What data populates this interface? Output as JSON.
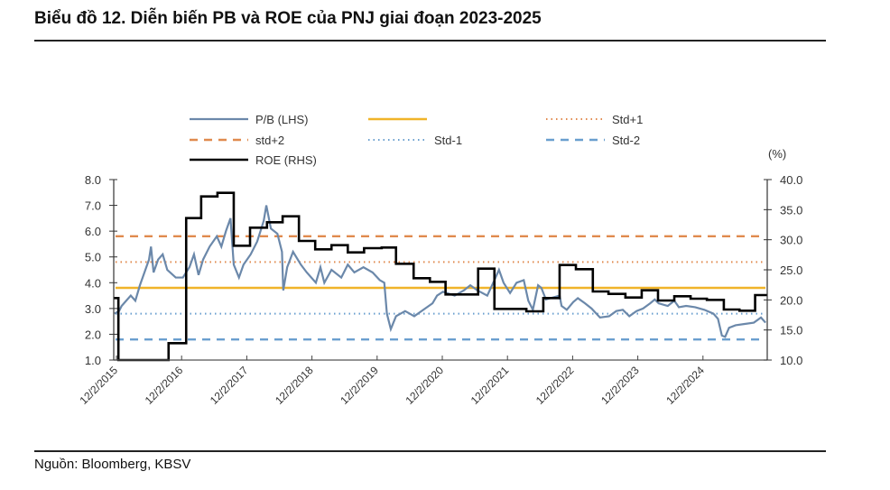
{
  "page": {
    "title": "Biểu đồ 12. Diễn biến PB và ROE của PNJ giai đoạn 2023-2025",
    "source": "Nguồn: Bloomberg, KBSV"
  },
  "chart_data": {
    "type": "line",
    "title": "Biểu đồ 12. Diễn biến PB và ROE của PNJ giai đoạn 2023-2025",
    "xlabel": "",
    "ylabel_left": "",
    "ylabel_right": "(%)",
    "x_unit": "years since 12/2/2015",
    "xlim": [
      -0.04,
      9.99
    ],
    "x_ticks": [
      {
        "t": 0,
        "label": "12/2/2015"
      },
      {
        "t": 1,
        "label": "12/2/2016"
      },
      {
        "t": 2,
        "label": "12/2/2017"
      },
      {
        "t": 3,
        "label": "12/2/2018"
      },
      {
        "t": 4,
        "label": "12/2/2019"
      },
      {
        "t": 5,
        "label": "12/2/2020"
      },
      {
        "t": 6,
        "label": "12/2/2021"
      },
      {
        "t": 7,
        "label": "12/2/2022"
      },
      {
        "t": 8,
        "label": "12/2/2023"
      },
      {
        "t": 9,
        "label": "12/2/2024"
      }
    ],
    "y_left": {
      "min": 1.0,
      "max": 8.0,
      "ticks": [
        "1.0",
        "2.0",
        "3.0",
        "4.0",
        "5.0",
        "6.0",
        "7.0",
        "8.0"
      ]
    },
    "y_right": {
      "min": 10.0,
      "max": 40.0,
      "ticks": [
        "10.0",
        "15.0",
        "20.0",
        "25.0",
        "30.0",
        "35.0",
        "40.0"
      ]
    },
    "grid": false,
    "legend": {
      "position": "top",
      "entries": [
        {
          "key": "pb",
          "label": "P/B (LHS)"
        },
        {
          "key": "mean",
          "label": ""
        },
        {
          "key": "std_p1",
          "label": "Std+1"
        },
        {
          "key": "std_p2",
          "label": "std+2"
        },
        {
          "key": "std_m1",
          "label": "Std-1"
        },
        {
          "key": "std_m2",
          "label": "Std-2"
        },
        {
          "key": "roe",
          "label": "ROE (RHS)"
        }
      ]
    },
    "colors": {
      "pb": "#6b88aa",
      "mean": "#f0b429",
      "std_p1": "#e08a4e",
      "std_p2": "#e08a4e",
      "std_m1": "#6a9fcf",
      "std_m2": "#6a9fcf",
      "roe": "#000000"
    },
    "reference_lines": {
      "std_p2": 5.8,
      "std_p1": 4.8,
      "mean": 3.8,
      "std_m1": 2.8,
      "std_m2": 1.8
    },
    "series": [
      {
        "name": "P/B (LHS)",
        "key": "pb",
        "axis": "left",
        "points": [
          [
            -0.03,
            2.8
          ],
          [
            0.04,
            2.9
          ],
          [
            0.08,
            3.1
          ],
          [
            0.15,
            3.3
          ],
          [
            0.22,
            3.5
          ],
          [
            0.29,
            3.3
          ],
          [
            0.36,
            3.9
          ],
          [
            0.43,
            4.4
          ],
          [
            0.5,
            4.9
          ],
          [
            0.53,
            5.4
          ],
          [
            0.57,
            4.4
          ],
          [
            0.64,
            4.9
          ],
          [
            0.71,
            5.1
          ],
          [
            0.78,
            4.5
          ],
          [
            0.91,
            4.2
          ],
          [
            1.02,
            4.2
          ],
          [
            1.12,
            4.6
          ],
          [
            1.19,
            5.1
          ],
          [
            1.26,
            4.3
          ],
          [
            1.33,
            4.9
          ],
          [
            1.43,
            5.4
          ],
          [
            1.54,
            5.8
          ],
          [
            1.61,
            5.4
          ],
          [
            1.68,
            6.0
          ],
          [
            1.75,
            6.5
          ],
          [
            1.8,
            4.7
          ],
          [
            1.88,
            4.2
          ],
          [
            1.95,
            4.7
          ],
          [
            2.06,
            5.1
          ],
          [
            2.16,
            5.6
          ],
          [
            2.26,
            6.4
          ],
          [
            2.3,
            7.0
          ],
          [
            2.37,
            6.1
          ],
          [
            2.47,
            5.9
          ],
          [
            2.54,
            5.2
          ],
          [
            2.56,
            3.7
          ],
          [
            2.62,
            4.6
          ],
          [
            2.71,
            5.2
          ],
          [
            2.83,
            4.7
          ],
          [
            2.92,
            4.4
          ],
          [
            3.06,
            4.0
          ],
          [
            3.13,
            4.6
          ],
          [
            3.19,
            4.0
          ],
          [
            3.3,
            4.5
          ],
          [
            3.45,
            4.2
          ],
          [
            3.55,
            4.7
          ],
          [
            3.65,
            4.4
          ],
          [
            3.79,
            4.6
          ],
          [
            3.93,
            4.4
          ],
          [
            4.04,
            4.1
          ],
          [
            4.11,
            4.0
          ],
          [
            4.15,
            2.8
          ],
          [
            4.21,
            2.2
          ],
          [
            4.29,
            2.7
          ],
          [
            4.43,
            2.9
          ],
          [
            4.57,
            2.7
          ],
          [
            4.71,
            2.95
          ],
          [
            4.85,
            3.2
          ],
          [
            4.92,
            3.5
          ],
          [
            5.01,
            3.65
          ],
          [
            5.19,
            3.5
          ],
          [
            5.33,
            3.7
          ],
          [
            5.43,
            3.9
          ],
          [
            5.54,
            3.7
          ],
          [
            5.69,
            3.5
          ],
          [
            5.8,
            4.1
          ],
          [
            5.87,
            4.5
          ],
          [
            5.94,
            4.0
          ],
          [
            6.04,
            3.6
          ],
          [
            6.14,
            4.0
          ],
          [
            6.25,
            4.1
          ],
          [
            6.32,
            3.3
          ],
          [
            6.39,
            2.95
          ],
          [
            6.47,
            3.9
          ],
          [
            6.52,
            3.8
          ],
          [
            6.59,
            3.35
          ],
          [
            6.73,
            3.45
          ],
          [
            6.8,
            3.5
          ],
          [
            6.83,
            3.1
          ],
          [
            6.91,
            2.95
          ],
          [
            7.01,
            3.25
          ],
          [
            7.08,
            3.4
          ],
          [
            7.19,
            3.2
          ],
          [
            7.29,
            3.0
          ],
          [
            7.42,
            2.65
          ],
          [
            7.56,
            2.7
          ],
          [
            7.67,
            2.9
          ],
          [
            7.77,
            2.95
          ],
          [
            7.87,
            2.7
          ],
          [
            7.98,
            2.9
          ],
          [
            8.08,
            3.0
          ],
          [
            8.19,
            3.2
          ],
          [
            8.26,
            3.35
          ],
          [
            8.32,
            3.2
          ],
          [
            8.46,
            3.1
          ],
          [
            8.56,
            3.3
          ],
          [
            8.63,
            3.05
          ],
          [
            8.74,
            3.1
          ],
          [
            8.88,
            3.05
          ],
          [
            9.02,
            2.95
          ],
          [
            9.16,
            2.8
          ],
          [
            9.23,
            2.6
          ],
          [
            9.29,
            1.95
          ],
          [
            9.34,
            1.9
          ],
          [
            9.4,
            2.25
          ],
          [
            9.5,
            2.35
          ],
          [
            9.64,
            2.4
          ],
          [
            9.78,
            2.45
          ],
          [
            9.89,
            2.65
          ],
          [
            9.96,
            2.45
          ]
        ]
      },
      {
        "name": "ROE (RHS)",
        "key": "roe",
        "axis": "right",
        "step": true,
        "points": [
          [
            -0.04,
            20.3
          ],
          [
            0.03,
            9.0
          ],
          [
            0.8,
            12.8
          ],
          [
            1.07,
            33.6
          ],
          [
            1.3,
            37.2
          ],
          [
            1.55,
            37.8
          ],
          [
            1.8,
            29.0
          ],
          [
            2.05,
            32.0
          ],
          [
            2.31,
            32.9
          ],
          [
            2.55,
            33.9
          ],
          [
            2.8,
            29.8
          ],
          [
            3.05,
            28.4
          ],
          [
            3.3,
            29.1
          ],
          [
            3.55,
            27.9
          ],
          [
            3.8,
            28.6
          ],
          [
            4.07,
            28.7
          ],
          [
            4.29,
            26.0
          ],
          [
            4.56,
            23.6
          ],
          [
            4.81,
            23.0
          ],
          [
            5.05,
            20.9
          ],
          [
            5.55,
            25.2
          ],
          [
            5.8,
            18.5
          ],
          [
            6.29,
            18.1
          ],
          [
            6.55,
            20.3
          ],
          [
            6.8,
            25.8
          ],
          [
            7.05,
            25.1
          ],
          [
            7.31,
            21.4
          ],
          [
            7.55,
            21.0
          ],
          [
            7.81,
            20.4
          ],
          [
            8.06,
            21.6
          ],
          [
            8.31,
            19.9
          ],
          [
            8.56,
            20.6
          ],
          [
            8.81,
            20.2
          ],
          [
            9.06,
            20.0
          ],
          [
            9.32,
            18.4
          ],
          [
            9.56,
            18.2
          ],
          [
            9.8,
            20.8
          ],
          [
            9.99,
            20.8
          ]
        ]
      }
    ]
  }
}
